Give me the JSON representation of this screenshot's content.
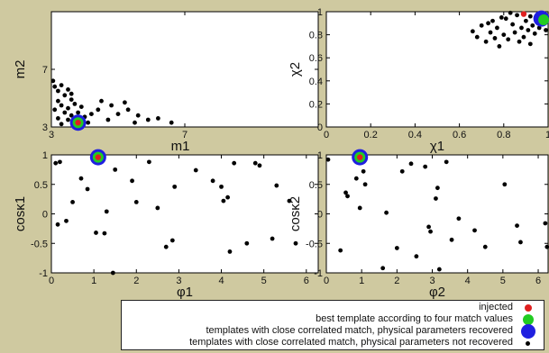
{
  "colors": {
    "background": "#cfc9a0",
    "injected": "#e02020",
    "best_template": "#22cc22",
    "recovered": "#1f1fe0",
    "not_recovered": "#000000"
  },
  "chart_data": [
    {
      "type": "scatter",
      "id": "m1m2",
      "xlabel": "m1",
      "ylabel": "m2",
      "x_ticks": [
        "3",
        "7"
      ],
      "y_ticks": [
        "3",
        "7"
      ],
      "xlim": [
        3,
        11
      ],
      "ylim": [
        3,
        11
      ],
      "grid": false,
      "injected": [
        3.8,
        3.3
      ],
      "best": [
        3.8,
        3.3
      ],
      "recovered": [
        [
          3.8,
          3.3
        ]
      ],
      "points": [
        [
          3.05,
          6.2
        ],
        [
          3.1,
          5.8
        ],
        [
          3.2,
          5.5
        ],
        [
          3.3,
          5.9
        ],
        [
          3.4,
          5.2
        ],
        [
          3.5,
          5.6
        ],
        [
          3.6,
          4.9
        ],
        [
          3.2,
          4.8
        ],
        [
          3.3,
          4.5
        ],
        [
          3.5,
          4.3
        ],
        [
          3.7,
          4.6
        ],
        [
          3.9,
          4.4
        ],
        [
          3.1,
          4.2
        ],
        [
          3.4,
          4.0
        ],
        [
          3.6,
          3.8
        ],
        [
          3.8,
          4.0
        ],
        [
          4.0,
          3.7
        ],
        [
          4.2,
          3.9
        ],
        [
          3.2,
          3.6
        ],
        [
          3.5,
          3.5
        ],
        [
          4.5,
          4.8
        ],
        [
          4.8,
          4.5
        ],
        [
          4.4,
          4.2
        ],
        [
          5.0,
          3.9
        ],
        [
          5.3,
          4.2
        ],
        [
          5.6,
          3.8
        ],
        [
          5.9,
          3.5
        ],
        [
          6.2,
          3.6
        ],
        [
          5.5,
          3.3
        ],
        [
          6.6,
          3.3
        ],
        [
          4.7,
          3.5
        ],
        [
          3.3,
          3.2
        ],
        [
          4.1,
          3.3
        ],
        [
          5.2,
          4.7
        ],
        [
          3.6,
          5.3
        ]
      ]
    },
    {
      "type": "scatter",
      "id": "chi1chi2",
      "xlabel": "χ1",
      "ylabel": "χ2",
      "x_ticks": [
        "0",
        "0.2",
        "0.4",
        "0.6",
        "0.8",
        "1"
      ],
      "y_ticks": [
        "0",
        "0.2",
        "0.4",
        "0.6",
        "0.8",
        "1"
      ],
      "xlim": [
        0,
        1
      ],
      "ylim": [
        0,
        1
      ],
      "grid": false,
      "injected": [
        0.89,
        0.98
      ],
      "best": [
        0.98,
        0.93
      ],
      "recovered": [
        [
          0.97,
          0.94
        ]
      ],
      "points": [
        [
          0.66,
          0.83
        ],
        [
          0.68,
          0.78
        ],
        [
          0.7,
          0.88
        ],
        [
          0.72,
          0.74
        ],
        [
          0.74,
          0.82
        ],
        [
          0.75,
          0.92
        ],
        [
          0.77,
          0.86
        ],
        [
          0.78,
          0.7
        ],
        [
          0.8,
          0.8
        ],
        [
          0.81,
          0.94
        ],
        [
          0.82,
          0.76
        ],
        [
          0.84,
          0.89
        ],
        [
          0.85,
          0.82
        ],
        [
          0.86,
          0.97
        ],
        [
          0.87,
          0.74
        ],
        [
          0.88,
          0.86
        ],
        [
          0.89,
          0.78
        ],
        [
          0.9,
          0.92
        ],
        [
          0.91,
          0.84
        ],
        [
          0.92,
          0.96
        ],
        [
          0.93,
          0.88
        ],
        [
          0.94,
          0.81
        ],
        [
          0.95,
          0.93
        ],
        [
          0.96,
          0.86
        ],
        [
          0.97,
          0.98
        ],
        [
          0.98,
          0.9
        ],
        [
          0.99,
          0.84
        ],
        [
          0.83,
          0.99
        ],
        [
          0.79,
          0.95
        ],
        [
          0.76,
          0.77
        ],
        [
          0.73,
          0.9
        ],
        [
          0.92,
          0.72
        ]
      ]
    },
    {
      "type": "scatter",
      "id": "phi1cosk1",
      "xlabel": "φ1",
      "ylabel": "cosκ1",
      "x_ticks": [
        "0",
        "1",
        "2",
        "3",
        "4",
        "5",
        "6"
      ],
      "y_ticks": [
        "-1",
        "-0.5",
        "0",
        "0.5",
        "1"
      ],
      "xlim": [
        0,
        6.28
      ],
      "ylim": [
        -1,
        1
      ],
      "grid": false,
      "injected": [
        1.1,
        0.96
      ],
      "best": [
        1.1,
        0.96
      ],
      "recovered": [
        [
          1.1,
          0.96
        ]
      ],
      "points": [
        [
          0.1,
          0.86
        ],
        [
          0.2,
          0.88
        ],
        [
          0.15,
          -0.18
        ],
        [
          0.35,
          -0.12
        ],
        [
          0.5,
          0.2
        ],
        [
          0.7,
          0.6
        ],
        [
          0.85,
          0.42
        ],
        [
          1.05,
          -0.32
        ],
        [
          1.25,
          -0.33
        ],
        [
          1.3,
          0.04
        ],
        [
          1.45,
          -1.0
        ],
        [
          1.5,
          0.75
        ],
        [
          1.9,
          0.56
        ],
        [
          2.0,
          0.2
        ],
        [
          2.3,
          0.88
        ],
        [
          2.5,
          0.1
        ],
        [
          2.7,
          -0.56
        ],
        [
          2.85,
          -0.45
        ],
        [
          2.9,
          0.46
        ],
        [
          3.4,
          0.74
        ],
        [
          3.8,
          0.56
        ],
        [
          4.0,
          0.46
        ],
        [
          4.05,
          0.22
        ],
        [
          4.2,
          -0.64
        ],
        [
          4.3,
          0.86
        ],
        [
          4.6,
          -0.5
        ],
        [
          4.8,
          0.86
        ],
        [
          4.9,
          0.82
        ],
        [
          5.2,
          -0.42
        ],
        [
          5.3,
          0.48
        ],
        [
          5.6,
          0.22
        ],
        [
          5.75,
          -0.5
        ],
        [
          4.15,
          0.28
        ]
      ]
    },
    {
      "type": "scatter",
      "id": "phi2cosk2",
      "xlabel": "φ2",
      "ylabel": "cosκ2",
      "x_ticks": [
        "0",
        "1",
        "2",
        "3",
        "4",
        "5",
        "6"
      ],
      "y_ticks": [
        "-1",
        "-0.5",
        "0",
        "0.5",
        "1"
      ],
      "xlim": [
        0,
        6.28
      ],
      "ylim": [
        -1,
        1
      ],
      "grid": false,
      "injected": [
        0.95,
        0.96
      ],
      "best": [
        0.95,
        0.96
      ],
      "recovered": [
        [
          0.95,
          0.96
        ]
      ],
      "points": [
        [
          0.05,
          0.92
        ],
        [
          0.4,
          -0.62
        ],
        [
          0.55,
          0.36
        ],
        [
          0.6,
          0.3
        ],
        [
          0.85,
          0.6
        ],
        [
          0.95,
          0.1
        ],
        [
          1.05,
          0.72
        ],
        [
          1.1,
          0.5
        ],
        [
          1.6,
          -0.92
        ],
        [
          1.7,
          0.02
        ],
        [
          2.0,
          -0.58
        ],
        [
          2.15,
          0.72
        ],
        [
          2.4,
          0.85
        ],
        [
          2.55,
          -0.72
        ],
        [
          2.8,
          0.8
        ],
        [
          2.9,
          -0.22
        ],
        [
          2.95,
          -0.3
        ],
        [
          3.1,
          0.26
        ],
        [
          3.15,
          0.44
        ],
        [
          3.2,
          -0.94
        ],
        [
          3.4,
          0.88
        ],
        [
          3.55,
          -0.44
        ],
        [
          3.75,
          -0.08
        ],
        [
          4.2,
          -0.28
        ],
        [
          4.5,
          -0.56
        ],
        [
          5.05,
          0.5
        ],
        [
          5.4,
          -0.2
        ],
        [
          5.5,
          -0.48
        ],
        [
          6.2,
          -0.16
        ],
        [
          6.25,
          -0.56
        ]
      ]
    }
  ],
  "legend": {
    "items": [
      {
        "label": "injected",
        "color": "#e02020",
        "size": 5
      },
      {
        "label": "best template according to four match values",
        "color": "#22cc22",
        "size": 8
      },
      {
        "label": "templates with close correlated match, physical parameters recovered",
        "color": "#1f1fe0",
        "size": 11
      },
      {
        "label": "templates with close correlated match, physical parameters not recovered",
        "color": "#000000",
        "size": 4
      }
    ]
  }
}
